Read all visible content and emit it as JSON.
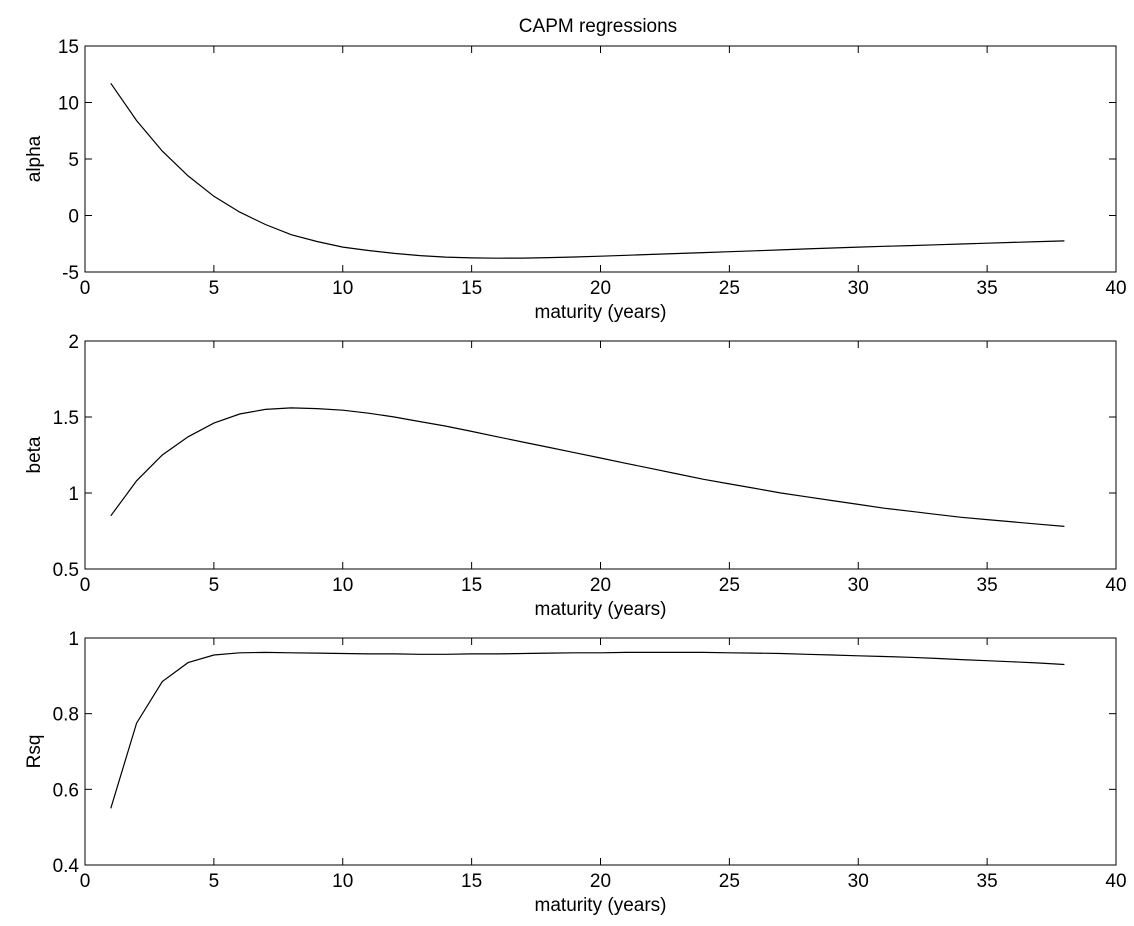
{
  "figure": {
    "title": "CAPM regressions"
  },
  "chart_data": [
    {
      "type": "line",
      "title": "CAPM regressions",
      "xlabel": "maturity (years)",
      "ylabel": "alpha",
      "xlim": [
        0,
        40
      ],
      "ylim": [
        -5,
        15
      ],
      "xticks": [
        0,
        5,
        10,
        15,
        20,
        25,
        30,
        35,
        40
      ],
      "yticks": [
        -5,
        0,
        5,
        10,
        15
      ],
      "grid": false,
      "series": [
        {
          "x": [
            1,
            2,
            3,
            4,
            5,
            6,
            7,
            8,
            9,
            10,
            11,
            12,
            13,
            14,
            15,
            16,
            17,
            18,
            19,
            20,
            21,
            22,
            23,
            24,
            25,
            26,
            27,
            28,
            29,
            30,
            31,
            32,
            33,
            34,
            35,
            36,
            37,
            38
          ],
          "values": [
            11.7,
            8.4,
            5.7,
            3.5,
            1.7,
            0.3,
            -0.8,
            -1.7,
            -2.3,
            -2.8,
            -3.1,
            -3.35,
            -3.55,
            -3.68,
            -3.75,
            -3.78,
            -3.77,
            -3.73,
            -3.67,
            -3.6,
            -3.52,
            -3.44,
            -3.36,
            -3.28,
            -3.2,
            -3.12,
            -3.04,
            -2.96,
            -2.88,
            -2.8,
            -2.73,
            -2.66,
            -2.59,
            -2.52,
            -2.45,
            -2.38,
            -2.31,
            -2.25
          ]
        }
      ]
    },
    {
      "type": "line",
      "xlabel": "maturity (years)",
      "ylabel": "beta",
      "xlim": [
        0,
        40
      ],
      "ylim": [
        0.5,
        2
      ],
      "xticks": [
        0,
        5,
        10,
        15,
        20,
        25,
        30,
        35,
        40
      ],
      "yticks": [
        0.5,
        1,
        1.5,
        2
      ],
      "grid": false,
      "series": [
        {
          "x": [
            1,
            2,
            3,
            4,
            5,
            6,
            7,
            8,
            9,
            10,
            11,
            12,
            13,
            14,
            15,
            16,
            17,
            18,
            19,
            20,
            21,
            22,
            23,
            24,
            25,
            26,
            27,
            28,
            29,
            30,
            31,
            32,
            33,
            34,
            35,
            36,
            37,
            38
          ],
          "values": [
            0.85,
            1.08,
            1.25,
            1.37,
            1.46,
            1.52,
            1.55,
            1.56,
            1.555,
            1.545,
            1.525,
            1.5,
            1.47,
            1.44,
            1.405,
            1.37,
            1.335,
            1.3,
            1.265,
            1.23,
            1.195,
            1.16,
            1.125,
            1.09,
            1.06,
            1.03,
            1.0,
            0.975,
            0.95,
            0.925,
            0.9,
            0.88,
            0.86,
            0.84,
            0.825,
            0.81,
            0.795,
            0.78
          ]
        }
      ]
    },
    {
      "type": "line",
      "xlabel": "maturity (years)",
      "ylabel": "Rsq",
      "xlim": [
        0,
        40
      ],
      "ylim": [
        0.4,
        1
      ],
      "xticks": [
        0,
        5,
        10,
        15,
        20,
        25,
        30,
        35,
        40
      ],
      "yticks": [
        0.4,
        0.6,
        0.8,
        1
      ],
      "grid": false,
      "series": [
        {
          "x": [
            1,
            2,
            3,
            4,
            5,
            6,
            7,
            8,
            9,
            10,
            11,
            12,
            13,
            14,
            15,
            16,
            17,
            18,
            19,
            20,
            21,
            22,
            23,
            24,
            25,
            26,
            27,
            28,
            29,
            30,
            31,
            32,
            33,
            34,
            35,
            36,
            37,
            38
          ],
          "values": [
            0.55,
            0.775,
            0.885,
            0.935,
            0.955,
            0.961,
            0.962,
            0.961,
            0.96,
            0.959,
            0.958,
            0.958,
            0.957,
            0.957,
            0.958,
            0.958,
            0.959,
            0.96,
            0.961,
            0.961,
            0.962,
            0.962,
            0.962,
            0.962,
            0.961,
            0.96,
            0.959,
            0.957,
            0.955,
            0.953,
            0.951,
            0.949,
            0.946,
            0.943,
            0.94,
            0.937,
            0.934,
            0.93
          ]
        }
      ]
    }
  ]
}
